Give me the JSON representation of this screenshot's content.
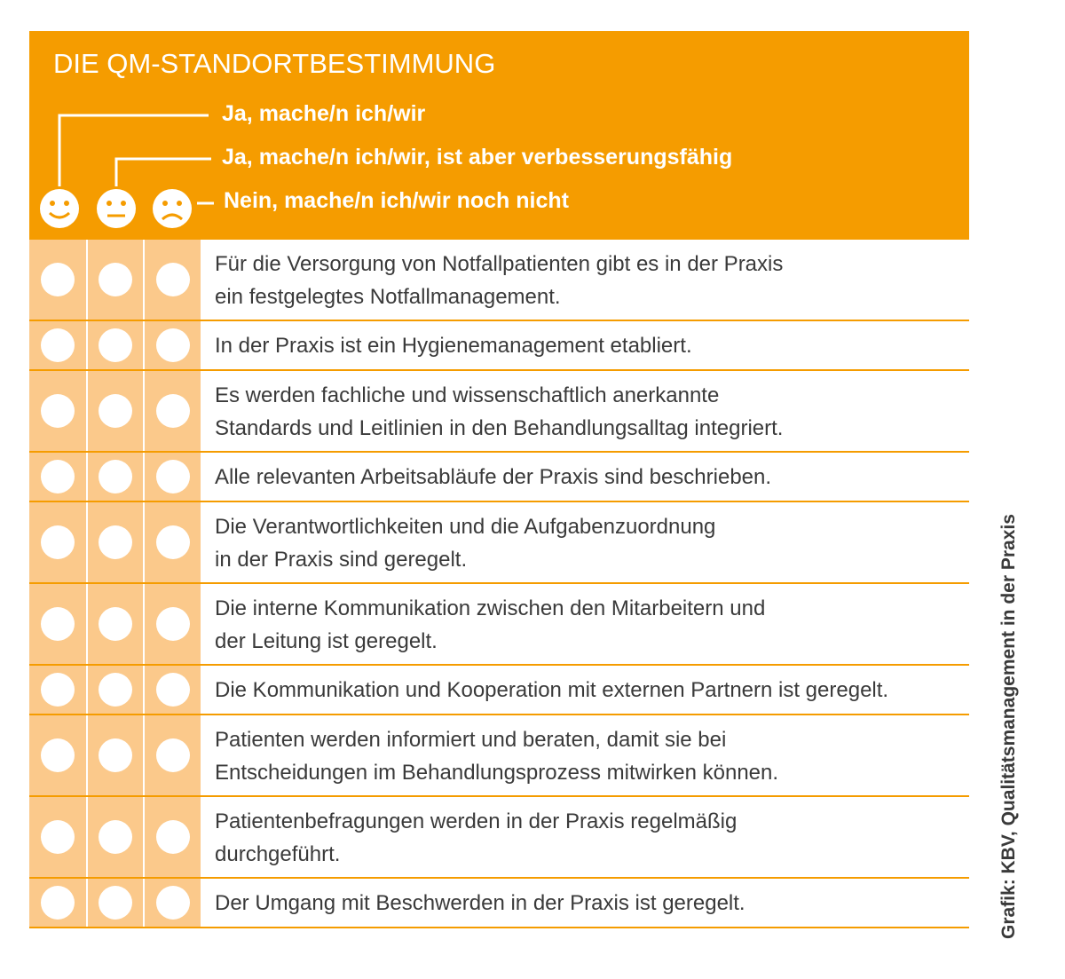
{
  "title": "DIE QM-STANDORTBESTIMMUNG",
  "legend": [
    "Ja, mache/n ich/wir",
    "Ja, mache/n ich/wir, ist aber verbesserungsfähig",
    "Nein, mache/n ich/wir noch nicht"
  ],
  "rows": [
    {
      "lines": [
        "Für die Versorgung von Notfallpatienten gibt es in der Praxis",
        "ein festgelegtes Notfallmanagement."
      ]
    },
    {
      "lines": [
        "In der Praxis ist ein Hygienemanagement etabliert."
      ]
    },
    {
      "lines": [
        "Es werden fachliche und wissenschaftlich anerkannte",
        "Standards und Leitlinien in den Behandlungsalltag integriert."
      ]
    },
    {
      "lines": [
        "Alle relevanten Arbeitsabläufe der Praxis sind beschrieben."
      ]
    },
    {
      "lines": [
        "Die Verantwortlichkeiten und die Aufgabenzuordnung",
        "in der Praxis sind geregelt."
      ]
    },
    {
      "lines": [
        "Die interne Kommunikation zwischen den Mitarbeitern und",
        "der Leitung ist geregelt."
      ]
    },
    {
      "lines": [
        "Die Kommunikation und Kooperation mit externen Partnern ist geregelt."
      ]
    },
    {
      "lines": [
        "Patienten werden informiert und beraten, damit sie bei",
        "Entscheidungen im Behandlungsprozess mitwirken können."
      ]
    },
    {
      "lines": [
        "Patientenbefragungen werden in der Praxis regelmäßig",
        "durchgeführt."
      ]
    },
    {
      "lines": [
        "Der Umgang mit Beschwerden in der Praxis ist geregelt."
      ]
    }
  ],
  "source": "Grafik:  KBV, Qualitätsmanagement in der Praxis"
}
